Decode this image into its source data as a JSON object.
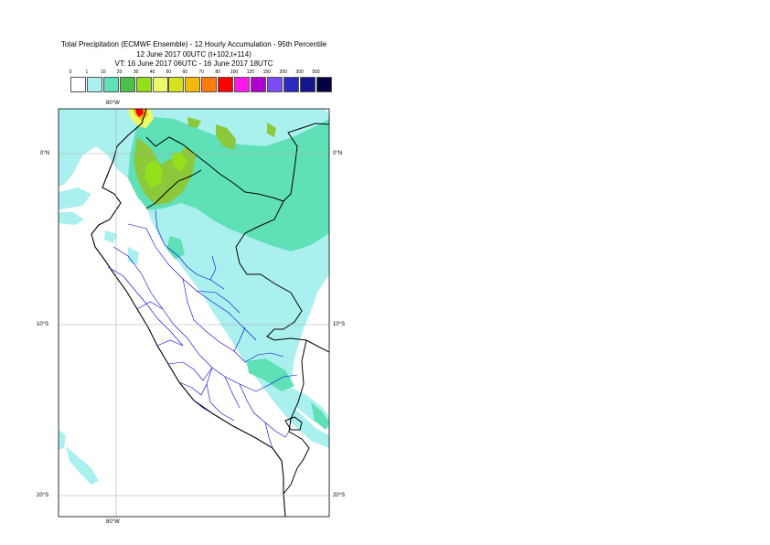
{
  "header": {
    "line1": "Total Precipitation (ECMWF Ensemble) - 12 Hourly Accumulation - 95th Percentile",
    "line2": "12 June 2017 00UTC (t+102,t+114)",
    "line3": "VT: 16 June 2017 06UTC - 16 June 2017 18UTC"
  },
  "legend": {
    "ticks": [
      "0",
      "1",
      "10",
      "20",
      "30",
      "40",
      "50",
      "60",
      "70",
      "80",
      "100",
      "125",
      "150",
      "200",
      "300",
      "500"
    ],
    "colors": [
      "#ffffff",
      "#aaf0ef",
      "#5fe0b6",
      "#4cc04b",
      "#93e01a",
      "#eaf86a",
      "#d8e11e",
      "#f4ba0a",
      "#ff7c0c",
      "#ff0000",
      "#ff1aec",
      "#b000d0",
      "#7a4cf4",
      "#2b2bc0",
      "#14148c",
      "#020244"
    ]
  },
  "map": {
    "lat_labels_left": [
      "0°N",
      "10°S",
      "20°S"
    ],
    "lat_labels_right": [
      "0°N",
      "10°S",
      "20°S"
    ],
    "lon_label_top": "80°W",
    "lon_label_bottom": "80°W"
  }
}
